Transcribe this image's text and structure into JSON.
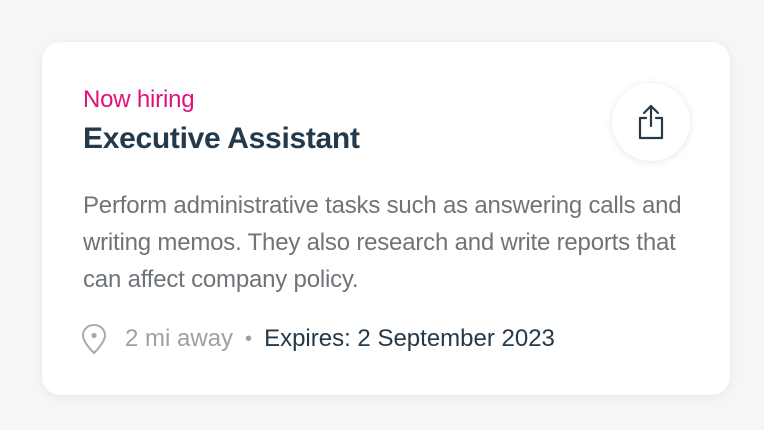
{
  "card": {
    "eyebrow": "Now hiring",
    "title": "Executive Assistant",
    "description": "Perform administrative tasks such as answering calls and writing memos. They also research and write reports that can affect company policy.",
    "distance": "2 mi away",
    "separator": "•",
    "expires": "Expires: 2 September 2023",
    "icons": {
      "share": "share-icon",
      "location": "location-pin-icon"
    }
  },
  "colors": {
    "accent": "#e0117a",
    "title": "#24394a",
    "body": "#6f7479",
    "muted": "#9aa1a7",
    "background": "#f6f6f6",
    "card": "#ffffff"
  }
}
